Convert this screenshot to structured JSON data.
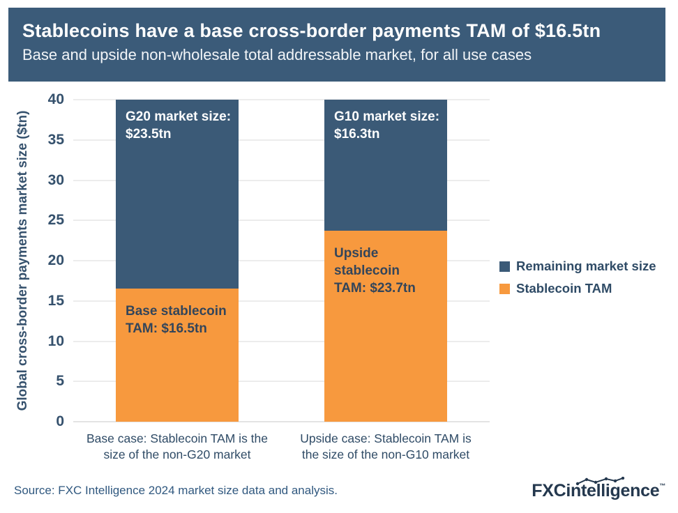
{
  "header": {
    "title": "Stablecoins have a base cross-border payments TAM of $16.5tn",
    "subtitle": "Base and upside non-wholesale total addressable market, for all use cases"
  },
  "chart_data": {
    "type": "bar",
    "stacked": true,
    "title": "Stablecoins have a base cross-border payments TAM of $16.5tn",
    "xlabel": "",
    "ylabel": "Global cross-border payments market size ($tn)",
    "ylim": [
      0,
      40
    ],
    "yticks": [
      0,
      5,
      10,
      15,
      20,
      25,
      30,
      35,
      40
    ],
    "grid": true,
    "legend_position": "right",
    "categories": [
      [
        "Base case: Stablecoin TAM is the",
        "size of the non-G20 market"
      ],
      [
        "Upside case: Stablecoin TAM is",
        "the size of the non-G10 market"
      ]
    ],
    "series": [
      {
        "name": "Stablecoin TAM",
        "color": "#F7993E",
        "label_color": "#33455A",
        "values": [
          16.5,
          23.7
        ],
        "bar_labels": [
          [
            "Base stablecoin",
            "TAM: $16.5tn"
          ],
          [
            "Upside stablecoin",
            "TAM: $23.7tn"
          ]
        ]
      },
      {
        "name": "Remaining market size",
        "color": "#3B5A77",
        "label_color": "#FFFFFF",
        "values": [
          23.5,
          16.3
        ],
        "bar_labels": [
          [
            "G20 market size:",
            "$23.5tn"
          ],
          [
            "G10 market size:",
            "$16.3tn"
          ]
        ]
      }
    ]
  },
  "legend": {
    "items": [
      {
        "label": "Remaining market size",
        "color": "#3B5A77"
      },
      {
        "label": "Stablecoin TAM",
        "color": "#F7993E"
      }
    ]
  },
  "footer": {
    "source": "Source: FXC Intelligence 2024 market size data and analysis.",
    "logo_bold": "FXC",
    "logo_rest": "intelligence",
    "logo_tm": "™"
  }
}
